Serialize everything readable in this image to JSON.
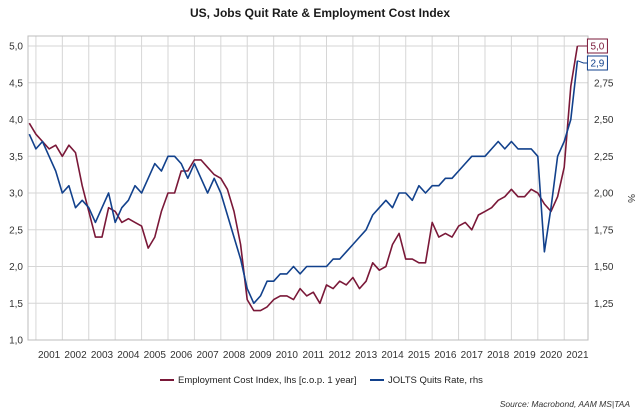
{
  "chart_data": {
    "type": "line",
    "title": "US, Jobs Quit Rate & Employment Cost Index",
    "xlabel": "",
    "ylabel_left": "",
    "ylabel_right": "%",
    "x_ticks": [
      "2001",
      "2002",
      "2003",
      "2004",
      "2005",
      "2006",
      "2007",
      "2008",
      "2009",
      "2010",
      "2011",
      "2012",
      "2013",
      "2014",
      "2015",
      "2016",
      "2017",
      "2018",
      "2019",
      "2020",
      "2021"
    ],
    "x_range": [
      2000.7,
      2021.9
    ],
    "y_left_ticks": [
      "1,0",
      "1,5",
      "2,0",
      "2,5",
      "3,0",
      "3,5",
      "4,0",
      "4,5",
      "5,0"
    ],
    "y_left_range": [
      1.0,
      5.0
    ],
    "y_right_ticks": [
      "1,25",
      "1,50",
      "1,75",
      "2,00",
      "2,25",
      "2,50",
      "2,75"
    ],
    "y_right_range": [
      1.0,
      3.0
    ],
    "grid": true,
    "legend_position": "bottom",
    "source": "Source: Macrobond, AAM MS|TAA",
    "series": [
      {
        "name": "Employment Cost Index, lhs [c.o.p. 1 year]",
        "axis": "left",
        "color": "#7a1838",
        "end_label": "5,0",
        "points": [
          [
            2000.75,
            3.95
          ],
          [
            2001.0,
            3.8
          ],
          [
            2001.25,
            3.7
          ],
          [
            2001.5,
            3.6
          ],
          [
            2001.75,
            3.65
          ],
          [
            2002.0,
            3.5
          ],
          [
            2002.25,
            3.65
          ],
          [
            2002.5,
            3.55
          ],
          [
            2002.75,
            3.1
          ],
          [
            2003.0,
            2.75
          ],
          [
            2003.25,
            2.4
          ],
          [
            2003.5,
            2.4
          ],
          [
            2003.75,
            2.8
          ],
          [
            2004.0,
            2.75
          ],
          [
            2004.25,
            2.6
          ],
          [
            2004.5,
            2.65
          ],
          [
            2004.75,
            2.6
          ],
          [
            2005.0,
            2.55
          ],
          [
            2005.25,
            2.25
          ],
          [
            2005.5,
            2.4
          ],
          [
            2005.75,
            2.75
          ],
          [
            2006.0,
            3.0
          ],
          [
            2006.25,
            3.0
          ],
          [
            2006.5,
            3.3
          ],
          [
            2006.75,
            3.3
          ],
          [
            2007.0,
            3.45
          ],
          [
            2007.25,
            3.45
          ],
          [
            2007.5,
            3.35
          ],
          [
            2007.75,
            3.25
          ],
          [
            2008.0,
            3.2
          ],
          [
            2008.25,
            3.05
          ],
          [
            2008.5,
            2.75
          ],
          [
            2008.75,
            2.3
          ],
          [
            2009.0,
            1.55
          ],
          [
            2009.25,
            1.4
          ],
          [
            2009.5,
            1.4
          ],
          [
            2009.75,
            1.45
          ],
          [
            2010.0,
            1.55
          ],
          [
            2010.25,
            1.6
          ],
          [
            2010.5,
            1.6
          ],
          [
            2010.75,
            1.55
          ],
          [
            2011.0,
            1.7
          ],
          [
            2011.25,
            1.6
          ],
          [
            2011.5,
            1.65
          ],
          [
            2011.75,
            1.5
          ],
          [
            2012.0,
            1.75
          ],
          [
            2012.25,
            1.7
          ],
          [
            2012.5,
            1.8
          ],
          [
            2012.75,
            1.75
          ],
          [
            2013.0,
            1.85
          ],
          [
            2013.25,
            1.7
          ],
          [
            2013.5,
            1.8
          ],
          [
            2013.75,
            2.05
          ],
          [
            2014.0,
            1.95
          ],
          [
            2014.25,
            2.0
          ],
          [
            2014.5,
            2.3
          ],
          [
            2014.75,
            2.45
          ],
          [
            2015.0,
            2.1
          ],
          [
            2015.25,
            2.1
          ],
          [
            2015.5,
            2.05
          ],
          [
            2015.75,
            2.05
          ],
          [
            2016.0,
            2.6
          ],
          [
            2016.25,
            2.4
          ],
          [
            2016.5,
            2.45
          ],
          [
            2016.75,
            2.4
          ],
          [
            2017.0,
            2.55
          ],
          [
            2017.25,
            2.6
          ],
          [
            2017.5,
            2.5
          ],
          [
            2017.75,
            2.7
          ],
          [
            2018.0,
            2.75
          ],
          [
            2018.25,
            2.8
          ],
          [
            2018.5,
            2.9
          ],
          [
            2018.75,
            2.95
          ],
          [
            2019.0,
            3.05
          ],
          [
            2019.25,
            2.95
          ],
          [
            2019.5,
            2.95
          ],
          [
            2019.75,
            3.05
          ],
          [
            2020.0,
            3.0
          ],
          [
            2020.25,
            2.85
          ],
          [
            2020.5,
            2.75
          ],
          [
            2020.75,
            2.95
          ],
          [
            2021.0,
            3.35
          ],
          [
            2021.25,
            4.45
          ],
          [
            2021.5,
            5.0
          ]
        ]
      },
      {
        "name": "JOLTS Quits Rate, rhs",
        "axis": "right",
        "color": "#12418c",
        "end_label": "2,9",
        "points": [
          [
            2000.75,
            2.4
          ],
          [
            2001.0,
            2.3
          ],
          [
            2001.25,
            2.35
          ],
          [
            2001.5,
            2.25
          ],
          [
            2001.75,
            2.15
          ],
          [
            2002.0,
            2.0
          ],
          [
            2002.25,
            2.05
          ],
          [
            2002.5,
            1.9
          ],
          [
            2002.75,
            1.95
          ],
          [
            2003.0,
            1.9
          ],
          [
            2003.25,
            1.8
          ],
          [
            2003.5,
            1.9
          ],
          [
            2003.75,
            2.0
          ],
          [
            2004.0,
            1.8
          ],
          [
            2004.25,
            1.9
          ],
          [
            2004.5,
            1.95
          ],
          [
            2004.75,
            2.05
          ],
          [
            2005.0,
            2.0
          ],
          [
            2005.25,
            2.1
          ],
          [
            2005.5,
            2.2
          ],
          [
            2005.75,
            2.15
          ],
          [
            2006.0,
            2.25
          ],
          [
            2006.25,
            2.25
          ],
          [
            2006.5,
            2.2
          ],
          [
            2006.75,
            2.1
          ],
          [
            2007.0,
            2.2
          ],
          [
            2007.25,
            2.1
          ],
          [
            2007.5,
            2.0
          ],
          [
            2007.75,
            2.1
          ],
          [
            2008.0,
            2.0
          ],
          [
            2008.25,
            1.85
          ],
          [
            2008.5,
            1.7
          ],
          [
            2008.75,
            1.55
          ],
          [
            2009.0,
            1.35
          ],
          [
            2009.25,
            1.25
          ],
          [
            2009.5,
            1.3
          ],
          [
            2009.75,
            1.4
          ],
          [
            2010.0,
            1.4
          ],
          [
            2010.25,
            1.45
          ],
          [
            2010.5,
            1.45
          ],
          [
            2010.75,
            1.5
          ],
          [
            2011.0,
            1.45
          ],
          [
            2011.25,
            1.5
          ],
          [
            2011.5,
            1.5
          ],
          [
            2011.75,
            1.5
          ],
          [
            2012.0,
            1.5
          ],
          [
            2012.25,
            1.55
          ],
          [
            2012.5,
            1.55
          ],
          [
            2012.75,
            1.6
          ],
          [
            2013.0,
            1.65
          ],
          [
            2013.25,
            1.7
          ],
          [
            2013.5,
            1.75
          ],
          [
            2013.75,
            1.85
          ],
          [
            2014.0,
            1.9
          ],
          [
            2014.25,
            1.95
          ],
          [
            2014.5,
            1.9
          ],
          [
            2014.75,
            2.0
          ],
          [
            2015.0,
            2.0
          ],
          [
            2015.25,
            1.95
          ],
          [
            2015.5,
            2.05
          ],
          [
            2015.75,
            2.0
          ],
          [
            2016.0,
            2.05
          ],
          [
            2016.25,
            2.05
          ],
          [
            2016.5,
            2.1
          ],
          [
            2016.75,
            2.1
          ],
          [
            2017.0,
            2.15
          ],
          [
            2017.25,
            2.2
          ],
          [
            2017.5,
            2.25
          ],
          [
            2017.75,
            2.25
          ],
          [
            2018.0,
            2.25
          ],
          [
            2018.25,
            2.3
          ],
          [
            2018.5,
            2.35
          ],
          [
            2018.75,
            2.3
          ],
          [
            2019.0,
            2.35
          ],
          [
            2019.25,
            2.3
          ],
          [
            2019.5,
            2.3
          ],
          [
            2019.75,
            2.3
          ],
          [
            2020.0,
            2.25
          ],
          [
            2020.25,
            1.6
          ],
          [
            2020.5,
            1.9
          ],
          [
            2020.75,
            2.25
          ],
          [
            2021.0,
            2.35
          ],
          [
            2021.25,
            2.5
          ],
          [
            2021.5,
            2.9
          ]
        ]
      }
    ]
  }
}
